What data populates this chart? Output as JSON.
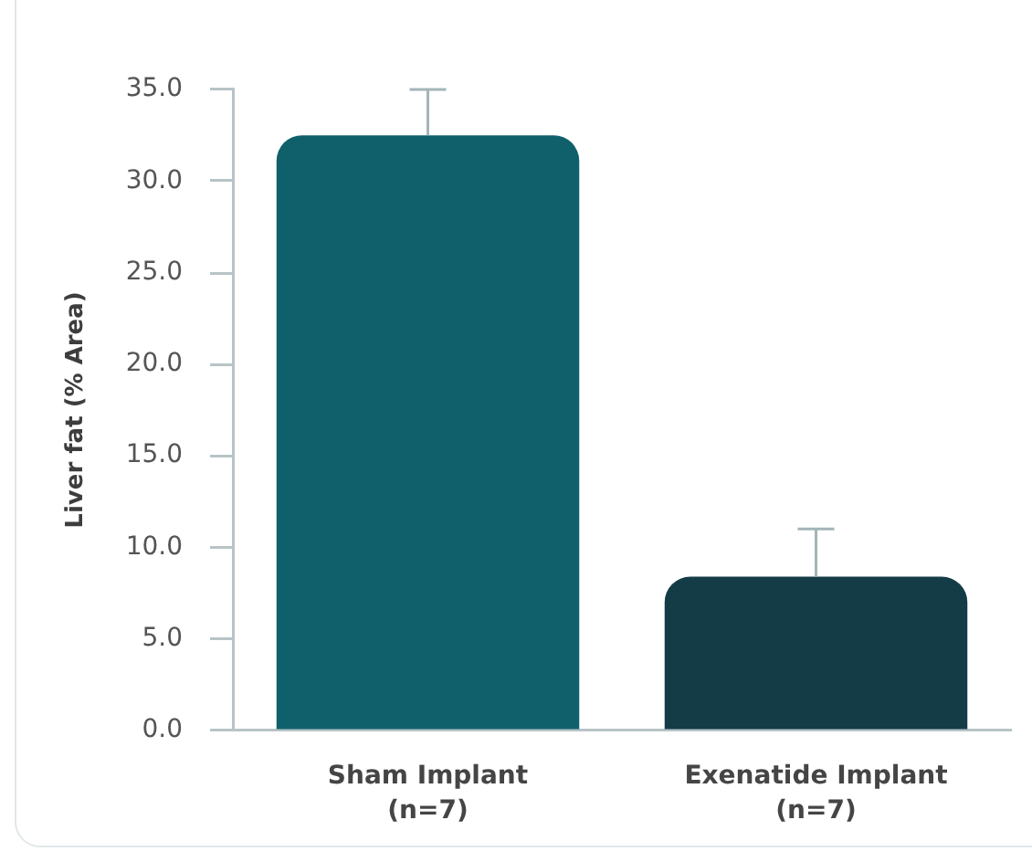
{
  "chart_data": {
    "type": "bar",
    "ylabel": "Liver fat (% Area)",
    "categories": [
      "Sham Implant\n(n=7)",
      "Exenatide Implant\n(n=7)"
    ],
    "values": [
      32.5,
      8.4
    ],
    "colors": [
      "#10606c",
      "#143c47"
    ],
    "errors": [
      [
        32.5,
        35.0
      ],
      [
        8.4,
        11.0
      ]
    ],
    "ylim": [
      0,
      35
    ],
    "yticks": [
      {
        "value": 0,
        "label": "0.0"
      },
      {
        "value": 5,
        "label": "5.0"
      },
      {
        "value": 10,
        "label": "10.0"
      },
      {
        "value": 15,
        "label": "15.0"
      },
      {
        "value": 20,
        "label": "20.0"
      },
      {
        "value": 25,
        "label": "25.0"
      },
      {
        "value": 30,
        "label": "30.0"
      },
      {
        "value": 35,
        "label": "35.0"
      }
    ],
    "grid": false,
    "legend": false
  }
}
